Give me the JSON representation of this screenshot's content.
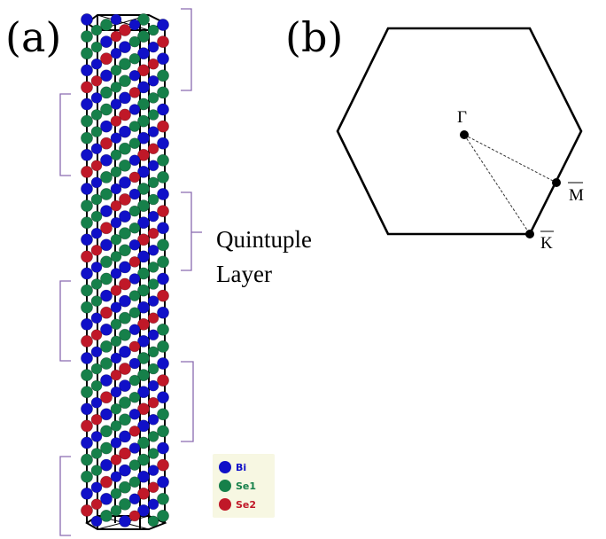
{
  "panels": {
    "a_label": "(a)",
    "b_label": "(b)"
  },
  "annotation": {
    "line1": "Quintuple",
    "line2": "Layer"
  },
  "legend": [
    {
      "label": "Bi",
      "color": "#1010c8"
    },
    {
      "label": "Se1",
      "color": "#16804a"
    },
    {
      "label": "Se2",
      "color": "#c01828"
    }
  ],
  "brillouin_zone": {
    "points": {
      "gamma": "Γ",
      "m": "M",
      "k": "K"
    }
  },
  "colors": {
    "bi": "#1010c8",
    "se1": "#16804a",
    "se2": "#c01828",
    "bracket": "#8a6bb0",
    "legend_bg": "#f7f7e2"
  }
}
